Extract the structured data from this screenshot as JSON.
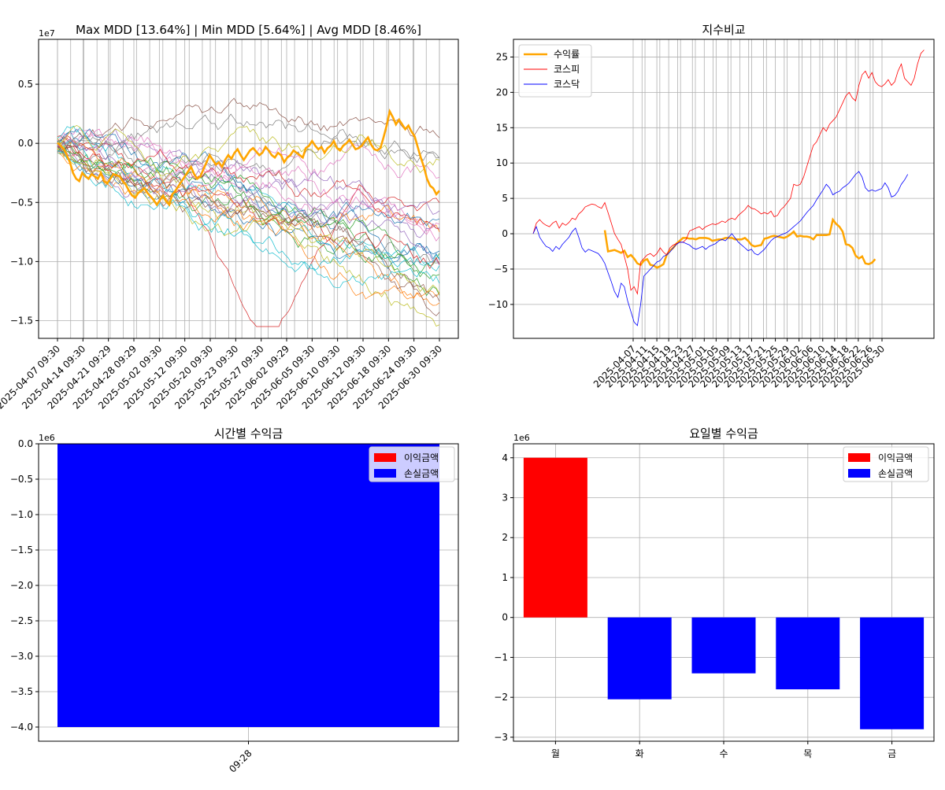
{
  "chart_data": [
    {
      "type": "line",
      "title": "Max MDD [13.64%] | Min MDD [5.64%] | Avg MDD [8.46%]",
      "y_exponent_label": "1e7",
      "x_tick_labels": [
        "2025-04-07 09:30",
        "2025-04-14 09:30",
        "2025-04-21 09:29",
        "2025-04-28 09:29",
        "2025-05-02 09:30",
        "2025-05-12 09:30",
        "2025-05-20 09:30",
        "2025-05-23 09:30",
        "2025-05-27 09:30",
        "2025-06-02 09:29",
        "2025-06-05 09:30",
        "2025-06-10 09:30",
        "2025-06-12 09:30",
        "2025-06-18 09:30",
        "2025-06-24 09:30",
        "2025-06-30 09:30"
      ],
      "y_ticks": [
        0.5,
        0.0,
        -0.5,
        -1.0,
        -1.5
      ],
      "y_tick_labels": [
        "0.5",
        "0.0",
        "−0.5",
        "−1.0",
        "−1.5"
      ],
      "ylim": [
        -1.65,
        0.88
      ],
      "n_points": 120,
      "highlight_color": "#FFA500",
      "highlight_series": [
        0.05,
        -0.2,
        -0.5,
        -1.0,
        -1.6,
        -2.5,
        -3.0,
        -3.2,
        -2.5,
        -2.8,
        -3.0,
        -2.6,
        -2.8,
        -3.0,
        -2.5,
        -3.2,
        -3.4,
        -3.0,
        -2.6,
        -2.7,
        -2.8,
        -3.2,
        -3.5,
        -4.0,
        -4.4,
        -4.6,
        -4.2,
        -4.0,
        -3.8,
        -4.2,
        -4.5,
        -4.8,
        -5.2,
        -4.8,
        -4.4,
        -4.9,
        -5.2,
        -4.3,
        -4.0,
        -3.6,
        -3.2,
        -2.8,
        -2.4,
        -2.0,
        -2.6,
        -3.0,
        -2.8,
        -2.2,
        -1.6,
        -1.0,
        -1.4,
        -1.8,
        -1.6,
        -2.0,
        -1.4,
        -1.0,
        -1.3,
        -0.8,
        -0.5,
        -1.0,
        -1.4,
        -1.0,
        -0.6,
        -0.4,
        -0.7,
        -1.0,
        -0.8,
        -0.3,
        -0.6,
        -1.0,
        -1.2,
        -0.8,
        -1.0,
        -1.6,
        -1.2,
        -1.0,
        -0.6,
        -0.8,
        -1.0,
        -1.2,
        -0.4,
        -0.2,
        0.2,
        -0.2,
        -0.5,
        -0.3,
        -0.8,
        -0.4,
        -0.2,
        0.2,
        -0.4,
        -0.6,
        -0.2,
        0.0,
        0.3,
        -0.1,
        -0.5,
        -0.4,
        -0.2,
        0.2,
        0.5,
        -0.1,
        -0.5,
        -0.6,
        -0.4,
        0.5,
        1.5,
        2.7,
        2.2,
        1.6,
        2.0,
        1.6,
        1.2,
        1.5,
        1.0,
        0.6,
        -0.3,
        -1.2,
        -2.0,
        -3.0,
        -3.6,
        -3.8,
        -4.3,
        -4.0
      ]
    },
    {
      "type": "line",
      "title": "지수비교",
      "x_tick_labels": [
        "2025-04-07",
        "2025-04-11",
        "2025-04-15",
        "2025-04-19",
        "2025-04-23",
        "2025-04-27",
        "2025-05-01",
        "2025-05-05",
        "2025-05-09",
        "2025-05-13",
        "2025-05-17",
        "2025-05-21",
        "2025-05-25",
        "2025-05-29",
        "2025-06-02",
        "2025-06-06",
        "2025-06-10",
        "2025-06-14",
        "2025-06-18",
        "2025-06-22",
        "2025-06-26",
        "2025-06-30"
      ],
      "y_ticks": [
        25,
        20,
        15,
        10,
        5,
        0,
        -5,
        -10
      ],
      "y_tick_labels": [
        "25",
        "20",
        "15",
        "10",
        "5",
        "0",
        "−5",
        "−10"
      ],
      "ylim": [
        -14.8,
        27.5
      ],
      "legend_position": "upper-left",
      "series": [
        {
          "name": "수익률",
          "color": "#FFA500",
          "width": 2.5,
          "start_index": 22,
          "values": [
            0.5,
            -2.5,
            -2.4,
            -2.3,
            -2.5,
            -2.7,
            -2.4,
            -3.3,
            -3.0,
            -3.5,
            -4.2,
            -4.4,
            -3.8,
            -3.6,
            -4.4,
            -4.5,
            -4.8,
            -4.6,
            -4.3,
            -3.0,
            -2.4,
            -2.0,
            -1.4,
            -1.0,
            -0.6,
            -0.6,
            -0.7,
            -0.7,
            -0.8,
            -0.6,
            -0.6,
            -0.6,
            -0.7,
            -1.0,
            -0.9,
            -0.8,
            -0.8,
            -0.6,
            -0.6,
            -0.6,
            -0.8,
            -0.8,
            -0.8,
            -0.6,
            -1.0,
            -1.6,
            -1.8,
            -1.7,
            -1.6,
            -0.7,
            -0.6,
            -0.4,
            -0.3,
            -0.4,
            -0.5,
            -0.6,
            -0.4,
            -0.1,
            0.3,
            -0.4,
            -0.3,
            -0.4,
            -0.4,
            -0.5,
            -0.8,
            -0.2,
            -0.2,
            -0.2,
            -0.2,
            -0.1,
            2.0,
            1.4,
            1.0,
            0.3,
            -1.5,
            -1.6,
            -2.0,
            -3.1,
            -3.5,
            -3.2,
            -4.2,
            -4.3,
            -4.1,
            -3.6
          ]
        },
        {
          "name": "코스피",
          "color": "#FF0000",
          "width": 0.8,
          "start_index": 0,
          "values": [
            0.0,
            1.5,
            2.0,
            1.5,
            1.2,
            1.0,
            1.5,
            1.8,
            0.8,
            1.5,
            1.2,
            1.6,
            2.2,
            2.0,
            2.8,
            3.2,
            3.8,
            4.0,
            4.2,
            4.1,
            3.8,
            3.6,
            4.4,
            3.0,
            1.5,
            0.0,
            -0.8,
            -1.5,
            -3.2,
            -5.0,
            -8.0,
            -7.5,
            -8.5,
            -4.0,
            -3.5,
            -3.0,
            -2.8,
            -3.2,
            -2.8,
            -2.0,
            -2.6,
            -3.0,
            -2.0,
            -1.6,
            -1.4,
            -1.2,
            -1.2,
            -0.8,
            0.4,
            0.6,
            0.8,
            1.0,
            0.6,
            1.0,
            1.2,
            1.4,
            1.3,
            1.5,
            1.8,
            1.6,
            2.0,
            2.2,
            2.0,
            2.6,
            3.0,
            3.4,
            4.0,
            3.6,
            3.5,
            3.2,
            2.8,
            3.0,
            2.8,
            3.2,
            2.4,
            2.6,
            3.4,
            3.8,
            4.4,
            5.0,
            7.0,
            6.8,
            7.0,
            8.0,
            9.5,
            11.0,
            12.5,
            13.0,
            14.0,
            15.0,
            14.5,
            15.5,
            16.0,
            16.5,
            17.5,
            18.5,
            19.5,
            20.0,
            19.2,
            18.8,
            21.0,
            22.5,
            23.0,
            22.0,
            22.8,
            21.5,
            21.0,
            20.8,
            21.2,
            21.8,
            21.0,
            21.5,
            23.0,
            24.0,
            22.0,
            21.5,
            21.0,
            22.0,
            24.0,
            25.5,
            26.0
          ]
        },
        {
          "name": "코스닥",
          "color": "#0000FF",
          "width": 0.8,
          "start_index": 0,
          "values": [
            0.0,
            1.0,
            -0.5,
            -1.2,
            -1.8,
            -2.0,
            -2.5,
            -1.8,
            -2.2,
            -1.5,
            -1.0,
            -0.5,
            0.3,
            0.8,
            -0.5,
            -2.0,
            -2.6,
            -2.2,
            -2.4,
            -2.6,
            -2.8,
            -3.4,
            -4.2,
            -5.5,
            -6.8,
            -8.2,
            -9.0,
            -7.0,
            -7.5,
            -9.5,
            -11.0,
            -12.5,
            -13.0,
            -10.0,
            -6.0,
            -5.5,
            -5.0,
            -4.5,
            -4.0,
            -3.8,
            -3.2,
            -3.0,
            -2.6,
            -2.0,
            -1.5,
            -1.2,
            -1.2,
            -1.4,
            -1.6,
            -2.0,
            -2.2,
            -2.0,
            -1.8,
            -2.2,
            -1.8,
            -1.6,
            -1.4,
            -1.0,
            -0.8,
            -1.0,
            -0.5,
            0.0,
            -0.6,
            -1.2,
            -1.6,
            -2.0,
            -2.4,
            -2.2,
            -2.8,
            -3.0,
            -2.6,
            -2.2,
            -1.6,
            -1.0,
            -0.6,
            -0.4,
            -0.2,
            0.0,
            0.2,
            0.6,
            1.0,
            1.4,
            1.8,
            2.4,
            3.0,
            3.5,
            4.0,
            4.8,
            5.5,
            6.2,
            7.0,
            6.5,
            5.5,
            5.8,
            6.0,
            6.5,
            6.8,
            7.2,
            7.8,
            8.4,
            8.8,
            8.0,
            6.5,
            6.0,
            6.2,
            6.0,
            6.2,
            6.4,
            7.2,
            6.5,
            5.2,
            5.4,
            6.0,
            7.0,
            7.6,
            8.4
          ]
        }
      ]
    },
    {
      "type": "bar",
      "title": "시간별 수익금",
      "y_exponent_label": "1e6",
      "categories": [
        "09:28"
      ],
      "values": [
        -4.0
      ],
      "y_ticks": [
        0.0,
        -0.5,
        -1.0,
        -1.5,
        -2.0,
        -2.5,
        -3.0,
        -3.5,
        -4.0
      ],
      "y_tick_labels": [
        "0.0",
        "−0.5",
        "−1.0",
        "−1.5",
        "−2.0",
        "−2.5",
        "−3.0",
        "−3.5",
        "−4.0"
      ],
      "ylim": [
        -4.2,
        0.0
      ],
      "legend_position": "upper-right",
      "legend": [
        {
          "label": "이익금액",
          "color": "#FF0000"
        },
        {
          "label": "손실금액",
          "color": "#0000FF"
        }
      ]
    },
    {
      "type": "bar",
      "title": "요일별 수익금",
      "y_exponent_label": "1e6",
      "categories": [
        "월",
        "화",
        "수",
        "목",
        "금"
      ],
      "values": [
        4.0,
        -2.05,
        -1.4,
        -1.8,
        -2.8
      ],
      "y_ticks": [
        4,
        3,
        2,
        1,
        0,
        -1,
        -2,
        -3
      ],
      "y_tick_labels": [
        "4",
        "3",
        "2",
        "1",
        "0",
        "−1",
        "−2",
        "−3"
      ],
      "ylim": [
        -3.1,
        4.35
      ],
      "legend_position": "upper-right",
      "legend": [
        {
          "label": "이익금액",
          "color": "#FF0000"
        },
        {
          "label": "손실금액",
          "color": "#0000FF"
        }
      ]
    }
  ]
}
